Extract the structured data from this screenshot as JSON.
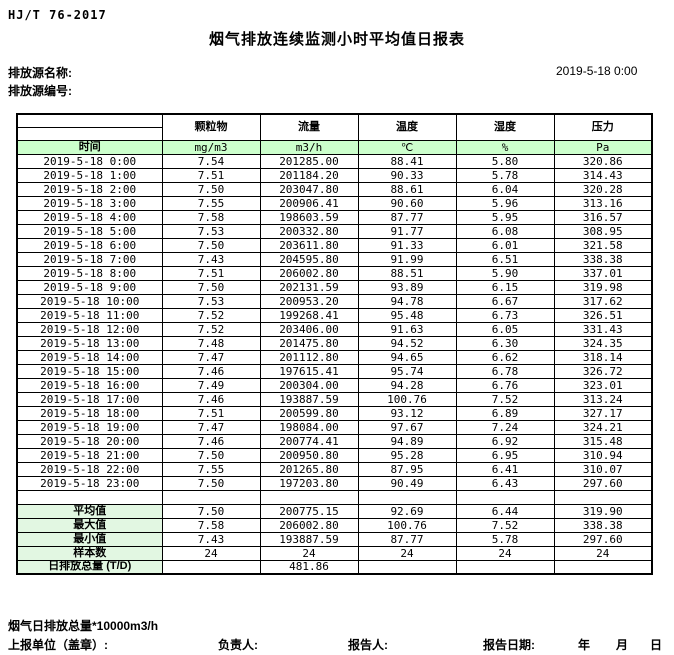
{
  "document": {
    "standard_code": "HJ/T 76-2017",
    "title": "烟气排放连续监测小时平均值日报表",
    "source_name_label": "排放源名称:",
    "source_id_label": "排放源编号:",
    "report_datetime": "2019-5-18 0:00"
  },
  "table": {
    "time_header": "时间",
    "columns": [
      {
        "label": "颗粒物",
        "unit": "mg/m3"
      },
      {
        "label": "流量",
        "unit": "m3/h"
      },
      {
        "label": "温度",
        "unit": "℃"
      },
      {
        "label": "湿度",
        "unit": "%"
      },
      {
        "label": "压力",
        "unit": "Pa"
      }
    ],
    "rows": [
      {
        "time": "2019-5-18 0:00",
        "values": [
          "7.54",
          "201285.00",
          "88.41",
          "5.80",
          "320.86"
        ]
      },
      {
        "time": "2019-5-18 1:00",
        "values": [
          "7.51",
          "201184.20",
          "90.33",
          "5.78",
          "314.43"
        ]
      },
      {
        "time": "2019-5-18 2:00",
        "values": [
          "7.50",
          "203047.80",
          "88.61",
          "6.04",
          "320.28"
        ]
      },
      {
        "time": "2019-5-18 3:00",
        "values": [
          "7.55",
          "200906.41",
          "90.60",
          "5.96",
          "313.16"
        ]
      },
      {
        "time": "2019-5-18 4:00",
        "values": [
          "7.58",
          "198603.59",
          "87.77",
          "5.95",
          "316.57"
        ]
      },
      {
        "time": "2019-5-18 5:00",
        "values": [
          "7.53",
          "200332.80",
          "91.77",
          "6.08",
          "308.95"
        ]
      },
      {
        "time": "2019-5-18 6:00",
        "values": [
          "7.50",
          "203611.80",
          "91.33",
          "6.01",
          "321.58"
        ]
      },
      {
        "time": "2019-5-18 7:00",
        "values": [
          "7.43",
          "204595.80",
          "91.99",
          "6.51",
          "338.38"
        ]
      },
      {
        "time": "2019-5-18 8:00",
        "values": [
          "7.51",
          "206002.80",
          "88.51",
          "5.90",
          "337.01"
        ]
      },
      {
        "time": "2019-5-18 9:00",
        "values": [
          "7.50",
          "202131.59",
          "93.89",
          "6.15",
          "319.98"
        ]
      },
      {
        "time": "2019-5-18 10:00",
        "values": [
          "7.53",
          "200953.20",
          "94.78",
          "6.67",
          "317.62"
        ]
      },
      {
        "time": "2019-5-18 11:00",
        "values": [
          "7.52",
          "199268.41",
          "95.48",
          "6.73",
          "326.51"
        ]
      },
      {
        "time": "2019-5-18 12:00",
        "values": [
          "7.52",
          "203406.00",
          "91.63",
          "6.05",
          "331.43"
        ]
      },
      {
        "time": "2019-5-18 13:00",
        "values": [
          "7.48",
          "201475.80",
          "94.52",
          "6.30",
          "324.35"
        ]
      },
      {
        "time": "2019-5-18 14:00",
        "values": [
          "7.47",
          "201112.80",
          "94.65",
          "6.62",
          "318.14"
        ]
      },
      {
        "time": "2019-5-18 15:00",
        "values": [
          "7.46",
          "197615.41",
          "95.74",
          "6.78",
          "326.72"
        ]
      },
      {
        "time": "2019-5-18 16:00",
        "values": [
          "7.49",
          "200304.00",
          "94.28",
          "6.76",
          "323.01"
        ]
      },
      {
        "time": "2019-5-18 17:00",
        "values": [
          "7.46",
          "193887.59",
          "100.76",
          "7.52",
          "313.24"
        ]
      },
      {
        "time": "2019-5-18 18:00",
        "values": [
          "7.51",
          "200599.80",
          "93.12",
          "6.89",
          "327.17"
        ]
      },
      {
        "time": "2019-5-18 19:00",
        "values": [
          "7.47",
          "198084.00",
          "97.67",
          "7.24",
          "324.21"
        ]
      },
      {
        "time": "2019-5-18 20:00",
        "values": [
          "7.46",
          "200774.41",
          "94.89",
          "6.92",
          "315.48"
        ]
      },
      {
        "time": "2019-5-18 21:00",
        "values": [
          "7.50",
          "200950.80",
          "95.28",
          "6.95",
          "310.94"
        ]
      },
      {
        "time": "2019-5-18 22:00",
        "values": [
          "7.55",
          "201265.80",
          "87.95",
          "6.41",
          "310.07"
        ]
      },
      {
        "time": "2019-5-18 23:00",
        "values": [
          "7.50",
          "197203.80",
          "90.49",
          "6.43",
          "297.60"
        ]
      }
    ],
    "summary": [
      {
        "label": "平均值",
        "values": [
          "7.50",
          "200775.15",
          "92.69",
          "6.44",
          "319.90"
        ]
      },
      {
        "label": "最大值",
        "values": [
          "7.58",
          "206002.80",
          "100.76",
          "7.52",
          "338.38"
        ]
      },
      {
        "label": "最小值",
        "values": [
          "7.43",
          "193887.59",
          "87.77",
          "5.78",
          "297.60"
        ]
      },
      {
        "label": "样本数",
        "values": [
          "24",
          "24",
          "24",
          "24",
          "24"
        ]
      },
      {
        "label": "日排放总量 (T/D)",
        "values": [
          "",
          "481.86",
          "",
          "",
          ""
        ]
      }
    ]
  },
  "footer": {
    "note": "烟气日排放总量*10000m3/h",
    "report_unit_label": "上报单位（盖章）:",
    "responsible_label": "负责人:",
    "reporter_label": "报告人:",
    "report_date_label": "报告日期:",
    "year_label": "年",
    "month_label": "月",
    "day_label": "日"
  }
}
